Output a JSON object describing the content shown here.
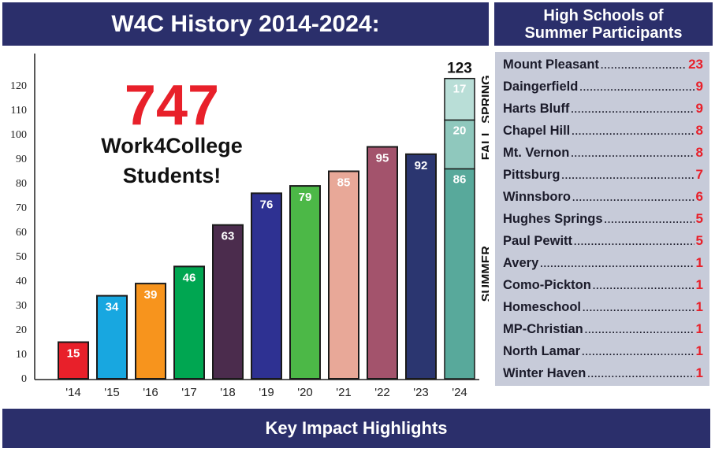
{
  "header": {
    "title": "W4C History 2014-2024:",
    "schools_title_line1": "High Schools of",
    "schools_title_line2": "Summer Participants"
  },
  "highlight": {
    "total": "747",
    "line1": "Work4College",
    "line2": "Students!"
  },
  "footer": {
    "label": "Key Impact Highlights"
  },
  "colors": {
    "banner": "#2b2f6b",
    "accent_red": "#e8202a",
    "panel": "#c7cbd9"
  },
  "chart_data": {
    "type": "bar",
    "categories": [
      "'14",
      "'15",
      "'16",
      "'17",
      "'18",
      "'19",
      "'20",
      "'21",
      "'22",
      "'23",
      "'24"
    ],
    "values": [
      15,
      34,
      39,
      46,
      63,
      76,
      79,
      85,
      95,
      92,
      123
    ],
    "bar_colors": [
      "#e8202a",
      "#18a7e0",
      "#f7941d",
      "#00a651",
      "#4b2c4d",
      "#2e3192",
      "#4cb847",
      "#e8a898",
      "#a3536c",
      "#2b3670",
      "#5aa79a"
    ],
    "yticks": [
      0,
      10,
      20,
      30,
      40,
      50,
      60,
      70,
      80,
      90,
      100,
      110,
      120
    ],
    "ylim": [
      0,
      123
    ],
    "stacked_2024": {
      "total_label": "123",
      "segments": [
        {
          "name": "SUMMER",
          "value": 86,
          "color": "#58a99b"
        },
        {
          "name": "FALL",
          "value": 20,
          "color": "#8fc8bd"
        },
        {
          "name": "SPRING",
          "value": 17,
          "color": "#b9ded7"
        }
      ]
    }
  },
  "schools": [
    {
      "name": "Mount Pleasant",
      "count": "23"
    },
    {
      "name": "Daingerfield",
      "count": "9"
    },
    {
      "name": "Harts Bluff",
      "count": "9"
    },
    {
      "name": "Chapel Hill",
      "count": "8"
    },
    {
      "name": "Mt. Vernon",
      "count": "8"
    },
    {
      "name": "Pittsburg",
      "count": "7"
    },
    {
      "name": "Winnsboro",
      "count": "6"
    },
    {
      "name": "Hughes Springs",
      "count": "5"
    },
    {
      "name": "Paul Pewitt",
      "count": "5"
    },
    {
      "name": "Avery",
      "count": "1"
    },
    {
      "name": "Como-Pickton",
      "count": "1"
    },
    {
      "name": "Homeschool",
      "count": "1"
    },
    {
      "name": "MP-Christian",
      "count": "1"
    },
    {
      "name": "North Lamar",
      "count": "1"
    },
    {
      "name": "Winter Haven",
      "count": "1"
    }
  ]
}
